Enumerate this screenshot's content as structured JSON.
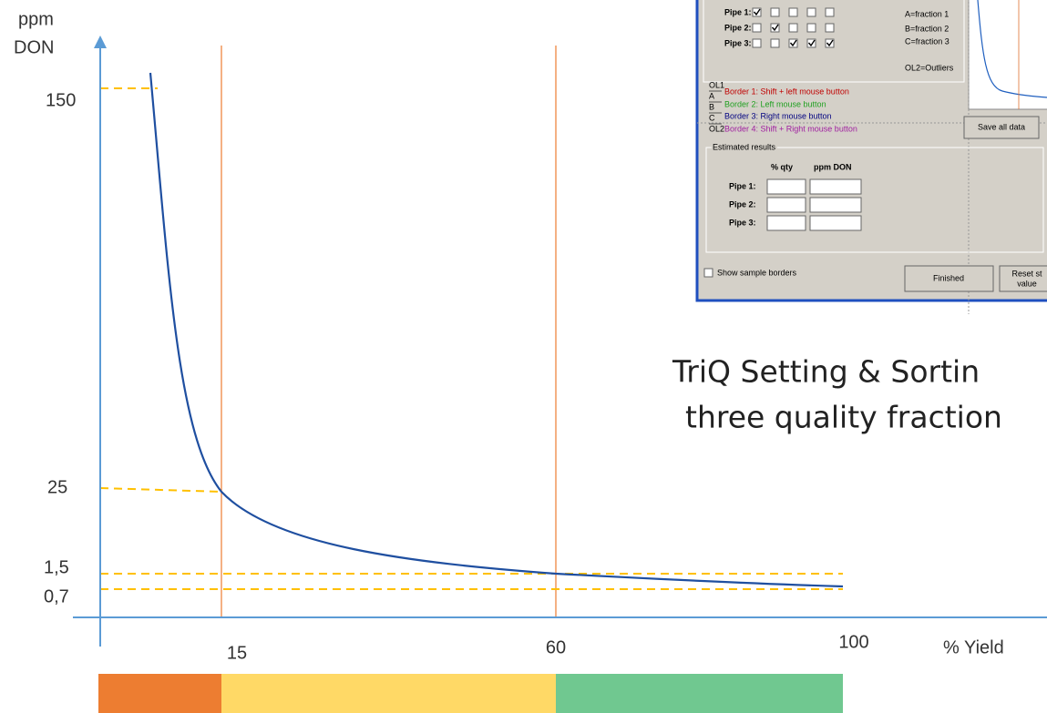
{
  "y_axis": {
    "label_lines": [
      "ppm",
      "DON"
    ],
    "ticks": [
      "150",
      "25",
      "1,5",
      "0,7"
    ]
  },
  "x_axis": {
    "ticks": [
      "15",
      "60",
      "100"
    ],
    "label": "% Yield"
  },
  "caption": {
    "lines": [
      "TriQ Setting & Sortin",
      "three quality fraction"
    ]
  },
  "screenshot": {
    "pipes": [
      "Pipe 1:",
      "Pipe 2:",
      "Pipe 3:"
    ],
    "fraction_legend": [
      "A=fraction 1",
      "B=fraction 2",
      "C=fraction 3",
      "OL2=Outliers"
    ],
    "border_codes": [
      "OL1",
      "A",
      "B",
      "C",
      "OL2"
    ],
    "borders": [
      "Border 1: Shift + left mouse button",
      "Border 2: Left mouse button",
      "Border 3: Right mouse button",
      "Border 4: Shift + Right mouse button"
    ],
    "save_button": "Save all data",
    "estimated_results": {
      "title": "Estimated results",
      "columns": [
        "% qty",
        "ppm DON"
      ],
      "rows": [
        "Pipe 1:",
        "Pipe 2:",
        "Pipe 3:"
      ]
    },
    "show_borders": "Show sample borders",
    "finished_button": "Finished",
    "reset_button_lines": [
      "Reset st",
      "value"
    ]
  }
}
